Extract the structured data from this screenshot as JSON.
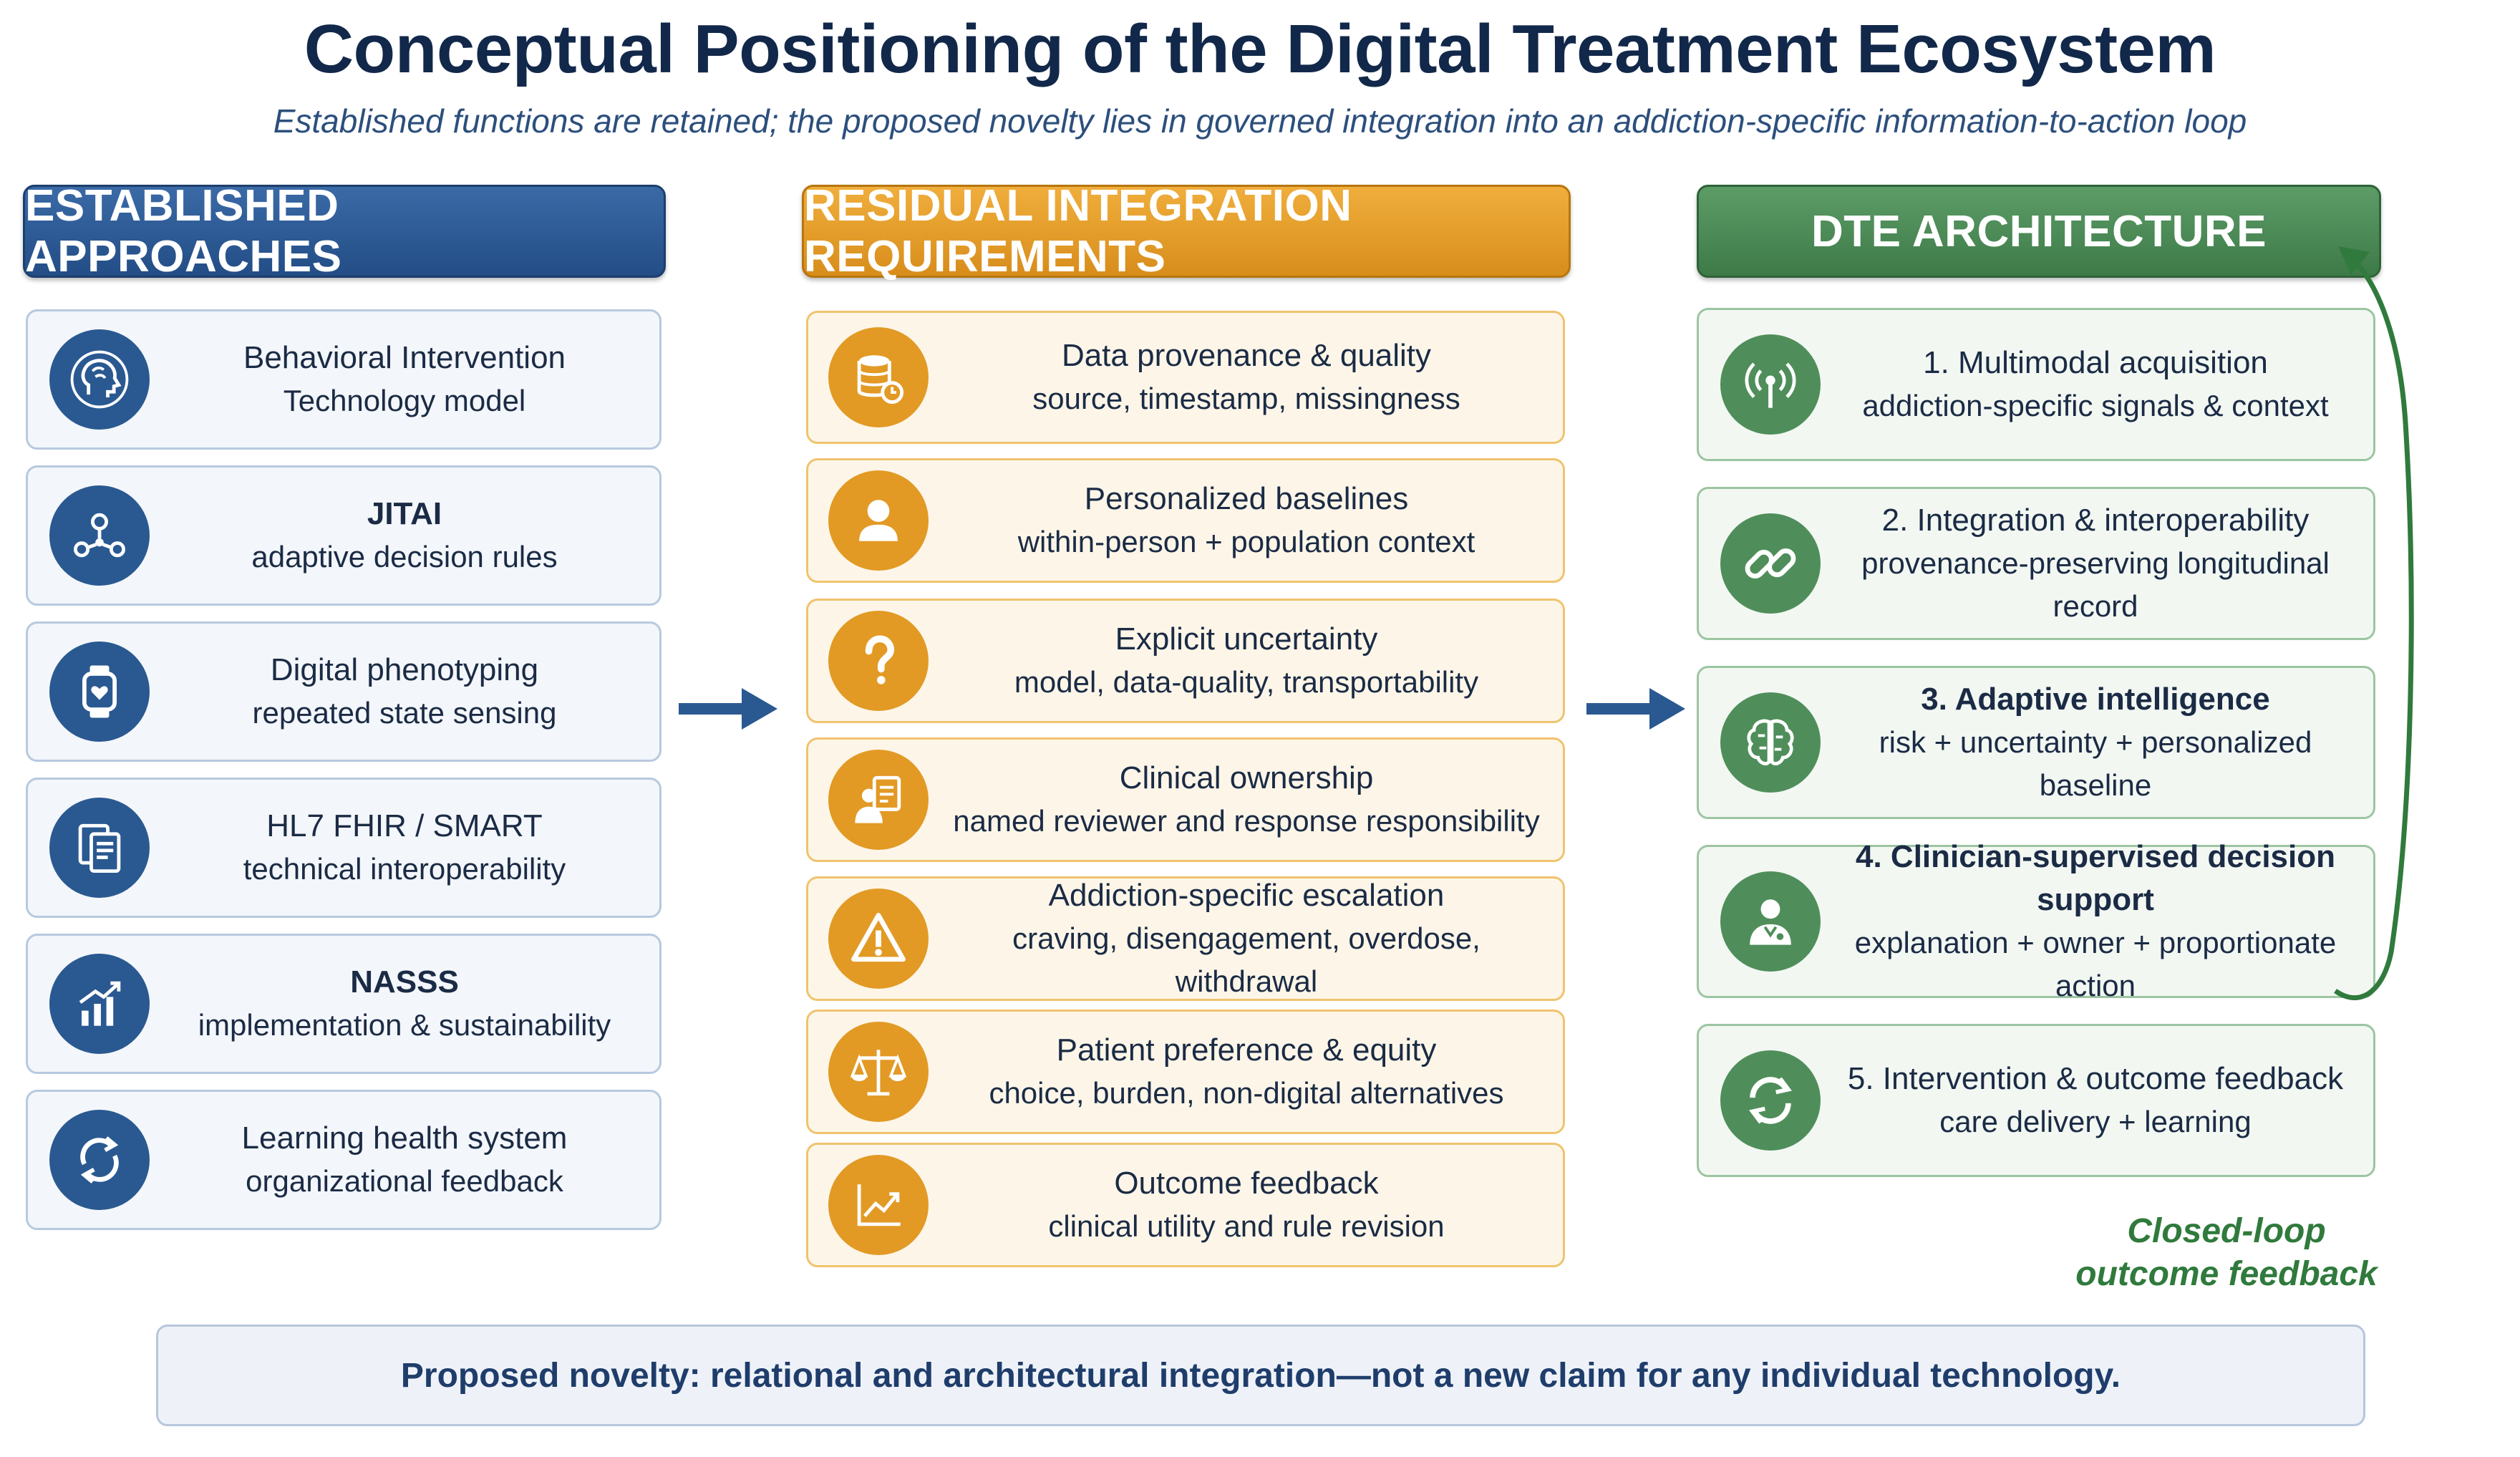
{
  "title": "Conceptual Positioning of the Digital Treatment Ecosystem",
  "subtitle": "Established functions are retained; the proposed novelty lies in governed integration into an addiction-specific information-to-action loop",
  "colors": {
    "blue": "#2a5991",
    "orange": "#e29a25",
    "green": "#4f8e5a"
  },
  "columns": {
    "established": {
      "header": "ESTABLISHED APPROACHES",
      "items": [
        {
          "icon": "brain-head-icon",
          "line1": "Behavioral Intervention",
          "line2": "Technology model"
        },
        {
          "icon": "network-nodes-icon",
          "line1": "JITAI",
          "line2": "adaptive decision rules"
        },
        {
          "icon": "smartwatch-heart-icon",
          "line1": "Digital phenotyping",
          "line2": "repeated state sensing"
        },
        {
          "icon": "documents-icon",
          "line1": "HL7 FHIR / SMART",
          "line2": "technical interoperability"
        },
        {
          "icon": "growth-chart-icon",
          "line1": "NASSS",
          "line2": "implementation & sustainability"
        },
        {
          "icon": "cycle-arrows-icon",
          "line1": "Learning health system",
          "line2": "organizational feedback"
        }
      ]
    },
    "residual": {
      "header": "RESIDUAL INTEGRATION REQUIREMENTS",
      "items": [
        {
          "icon": "database-clock-icon",
          "line1": "Data provenance & quality",
          "line2": "source, timestamp, missingness"
        },
        {
          "icon": "person-icon",
          "line1": "Personalized baselines",
          "line2": "within-person + population context"
        },
        {
          "icon": "question-mark-icon",
          "line1": "Explicit uncertainty",
          "line2": "model, data-quality, transportability"
        },
        {
          "icon": "clinician-document-icon",
          "line1": "Clinical ownership",
          "line2": "named reviewer and response responsibility"
        },
        {
          "icon": "warning-icon",
          "line1": "Addiction-specific escalation",
          "line2": "craving, disengagement, overdose, withdrawal"
        },
        {
          "icon": "balance-scale-icon",
          "line1": "Patient preference & equity",
          "line2": "choice, burden, non-digital alternatives"
        },
        {
          "icon": "trend-chart-icon",
          "line1": "Outcome feedback",
          "line2": "clinical utility and rule revision"
        }
      ]
    },
    "dte": {
      "header": "DTE ARCHITECTURE",
      "items": [
        {
          "icon": "signal-antenna-icon",
          "line1": "1. Multimodal acquisition",
          "line2": "addiction-specific signals & context"
        },
        {
          "icon": "link-icon",
          "line1": "2. Integration & interoperability",
          "line2": "provenance-preserving longitudinal record"
        },
        {
          "icon": "brain-icon",
          "line1": "3. Adaptive intelligence",
          "line2": "risk + uncertainty + personalized baseline"
        },
        {
          "icon": "clinician-icon",
          "line1": "4. Clinician-supervised decision support",
          "line2": "explanation + owner + proportionate action"
        },
        {
          "icon": "refresh-icon",
          "line1": "5. Intervention & outcome feedback",
          "line2": "care delivery + learning"
        }
      ]
    }
  },
  "loop_label": {
    "line1": "Closed-loop",
    "line2": "outcome feedback"
  },
  "footer": "Proposed novelty: relational and architectural integration—not a new claim for any individual technology."
}
